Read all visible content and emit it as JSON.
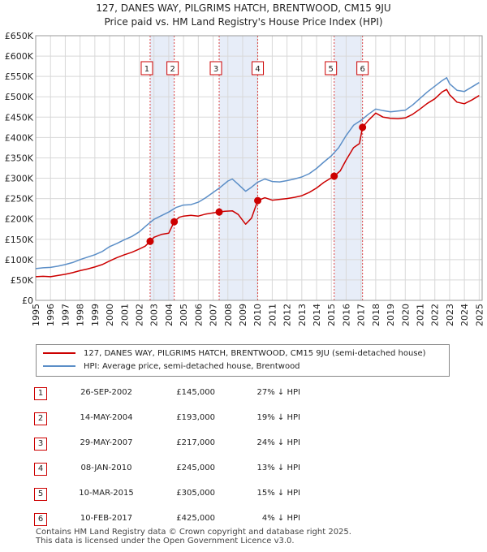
{
  "chart_data": {
    "type": "line",
    "title": "127, DANES WAY, PILGRIMS HATCH, BRENTWOOD, CM15 9JU",
    "subtitle": "Price paid vs. HM Land Registry's House Price Index (HPI)",
    "xlabel": "",
    "ylabel": "",
    "xlim": [
      1995,
      2025.2
    ],
    "ylim": [
      0,
      650000
    ],
    "x_ticks": [
      "1995",
      "1996",
      "1997",
      "1998",
      "1999",
      "2000",
      "2001",
      "2002",
      "2003",
      "2004",
      "2005",
      "2006",
      "2007",
      "2008",
      "2009",
      "2010",
      "2011",
      "2012",
      "2013",
      "2014",
      "2015",
      "2016",
      "2017",
      "2018",
      "2019",
      "2020",
      "2021",
      "2022",
      "2023",
      "2024",
      "2025"
    ],
    "y_ticks": [
      {
        "value": 0,
        "label": "£0"
      },
      {
        "value": 50000,
        "label": "£50K"
      },
      {
        "value": 100000,
        "label": "£100K"
      },
      {
        "value": 150000,
        "label": "£150K"
      },
      {
        "value": 200000,
        "label": "£200K"
      },
      {
        "value": 250000,
        "label": "£250K"
      },
      {
        "value": 300000,
        "label": "£300K"
      },
      {
        "value": 350000,
        "label": "£350K"
      },
      {
        "value": 400000,
        "label": "£400K"
      },
      {
        "value": 450000,
        "label": "£450K"
      },
      {
        "value": 500000,
        "label": "£500K"
      },
      {
        "value": 550000,
        "label": "£550K"
      },
      {
        "value": 600000,
        "label": "£600K"
      },
      {
        "value": 650000,
        "label": "£650K"
      }
    ],
    "grid": true,
    "legend_position": "below",
    "series": [
      {
        "name": "127, DANES WAY, PILGRIMS HATCH, BRENTWOOD, CM15 9JU (semi-detached house)",
        "color": "#cc0000",
        "points": [
          [
            1995.0,
            58000
          ],
          [
            1995.5,
            59000
          ],
          [
            1996.0,
            58000
          ],
          [
            1996.5,
            61000
          ],
          [
            1997.0,
            64000
          ],
          [
            1997.5,
            68000
          ],
          [
            1998.0,
            73000
          ],
          [
            1998.5,
            77000
          ],
          [
            1999.0,
            82000
          ],
          [
            1999.5,
            88000
          ],
          [
            2000.0,
            97000
          ],
          [
            2000.5,
            105000
          ],
          [
            2001.0,
            112000
          ],
          [
            2001.5,
            118000
          ],
          [
            2002.0,
            126000
          ],
          [
            2002.4,
            133000
          ],
          [
            2002.74,
            145000
          ],
          [
            2003.0,
            155000
          ],
          [
            2003.5,
            162000
          ],
          [
            2004.0,
            165000
          ],
          [
            2004.37,
            193000
          ],
          [
            2004.7,
            204000
          ],
          [
            2005.0,
            207000
          ],
          [
            2005.5,
            209000
          ],
          [
            2006.0,
            207000
          ],
          [
            2006.5,
            212000
          ],
          [
            2007.0,
            215000
          ],
          [
            2007.41,
            217000
          ],
          [
            2007.8,
            219000
          ],
          [
            2008.3,
            220000
          ],
          [
            2008.7,
            211000
          ],
          [
            2009.2,
            187000
          ],
          [
            2009.6,
            202000
          ],
          [
            2010.02,
            245000
          ],
          [
            2010.5,
            252000
          ],
          [
            2011.0,
            246000
          ],
          [
            2011.5,
            248000
          ],
          [
            2012.0,
            250000
          ],
          [
            2012.5,
            253000
          ],
          [
            2013.0,
            257000
          ],
          [
            2013.5,
            265000
          ],
          [
            2014.0,
            276000
          ],
          [
            2014.5,
            290000
          ],
          [
            2015.19,
            305000
          ],
          [
            2015.6,
            318000
          ],
          [
            2016.0,
            345000
          ],
          [
            2016.5,
            375000
          ],
          [
            2016.9,
            385000
          ],
          [
            2017.11,
            425000
          ],
          [
            2017.5,
            442000
          ],
          [
            2018.0,
            460000
          ],
          [
            2018.5,
            450000
          ],
          [
            2019.0,
            447000
          ],
          [
            2019.5,
            446000
          ],
          [
            2020.0,
            448000
          ],
          [
            2020.5,
            457000
          ],
          [
            2021.0,
            470000
          ],
          [
            2021.5,
            484000
          ],
          [
            2022.0,
            495000
          ],
          [
            2022.5,
            512000
          ],
          [
            2022.8,
            518000
          ],
          [
            2023.0,
            505000
          ],
          [
            2023.5,
            487000
          ],
          [
            2024.0,
            483000
          ],
          [
            2024.5,
            492000
          ],
          [
            2025.0,
            503000
          ]
        ]
      },
      {
        "name": "HPI: Average price, semi-detached house, Brentwood",
        "color": "#5b8ec7",
        "points": [
          [
            1995.0,
            78000
          ],
          [
            1995.5,
            80000
          ],
          [
            1996.0,
            81000
          ],
          [
            1996.5,
            84000
          ],
          [
            1997.0,
            88000
          ],
          [
            1997.5,
            93000
          ],
          [
            1998.0,
            100000
          ],
          [
            1998.5,
            106000
          ],
          [
            1999.0,
            112000
          ],
          [
            1999.5,
            120000
          ],
          [
            2000.0,
            132000
          ],
          [
            2000.5,
            140000
          ],
          [
            2001.0,
            149000
          ],
          [
            2001.5,
            157000
          ],
          [
            2002.0,
            168000
          ],
          [
            2002.5,
            184000
          ],
          [
            2003.0,
            199000
          ],
          [
            2003.5,
            208000
          ],
          [
            2004.0,
            217000
          ],
          [
            2004.5,
            228000
          ],
          [
            2005.0,
            234000
          ],
          [
            2005.5,
            235000
          ],
          [
            2006.0,
            241000
          ],
          [
            2006.5,
            252000
          ],
          [
            2007.0,
            265000
          ],
          [
            2007.5,
            278000
          ],
          [
            2008.0,
            293000
          ],
          [
            2008.3,
            298000
          ],
          [
            2008.7,
            285000
          ],
          [
            2009.2,
            268000
          ],
          [
            2009.6,
            278000
          ],
          [
            2010.0,
            290000
          ],
          [
            2010.5,
            298000
          ],
          [
            2011.0,
            292000
          ],
          [
            2011.5,
            291000
          ],
          [
            2012.0,
            294000
          ],
          [
            2012.5,
            298000
          ],
          [
            2013.0,
            303000
          ],
          [
            2013.5,
            311000
          ],
          [
            2014.0,
            324000
          ],
          [
            2014.5,
            340000
          ],
          [
            2015.0,
            355000
          ],
          [
            2015.5,
            375000
          ],
          [
            2016.0,
            405000
          ],
          [
            2016.5,
            430000
          ],
          [
            2017.0,
            442000
          ],
          [
            2017.5,
            457000
          ],
          [
            2018.0,
            470000
          ],
          [
            2018.5,
            466000
          ],
          [
            2019.0,
            463000
          ],
          [
            2019.5,
            465000
          ],
          [
            2020.0,
            467000
          ],
          [
            2020.5,
            480000
          ],
          [
            2021.0,
            496000
          ],
          [
            2021.5,
            512000
          ],
          [
            2022.0,
            526000
          ],
          [
            2022.5,
            540000
          ],
          [
            2022.8,
            547000
          ],
          [
            2023.0,
            532000
          ],
          [
            2023.5,
            516000
          ],
          [
            2024.0,
            513000
          ],
          [
            2024.5,
            524000
          ],
          [
            2025.0,
            535000
          ]
        ]
      }
    ],
    "sales": [
      {
        "num": "1",
        "date": "26-SEP-2002",
        "price": "£145,000",
        "hpi": "27% ↓ HPI",
        "x": 2002.74,
        "y": 145000
      },
      {
        "num": "2",
        "date": "14-MAY-2004",
        "price": "£193,000",
        "hpi": "19% ↓ HPI",
        "x": 2004.37,
        "y": 193000
      },
      {
        "num": "3",
        "date": "29-MAY-2007",
        "price": "£217,000",
        "hpi": "24% ↓ HPI",
        "x": 2007.41,
        "y": 217000
      },
      {
        "num": "4",
        "date": "08-JAN-2010",
        "price": "£245,000",
        "hpi": "13% ↓ HPI",
        "x": 2010.02,
        "y": 245000
      },
      {
        "num": "5",
        "date": "10-MAR-2015",
        "price": "£305,000",
        "hpi": "15% ↓ HPI",
        "x": 2015.19,
        "y": 305000
      },
      {
        "num": "6",
        "date": "10-FEB-2017",
        "price": "£425,000",
        "hpi": "4% ↓ HPI",
        "x": 2017.11,
        "y": 425000
      }
    ],
    "shaded_periods": [
      [
        2002.74,
        2004.37
      ],
      [
        2007.41,
        2010.02
      ],
      [
        2015.19,
        2017.11
      ]
    ]
  },
  "footer": {
    "line1": "Contains HM Land Registry data © Crown copyright and database right 2025.",
    "line2": "This data is licensed under the Open Government Licence v3.0."
  }
}
